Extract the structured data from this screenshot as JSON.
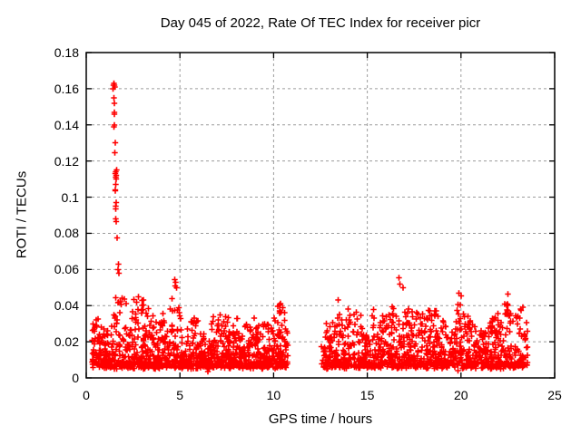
{
  "window": {
    "background": "#ffffff",
    "foreground": "#000000"
  },
  "chart_data": {
    "type": "scatter",
    "title": "Day 045 of 2022, Rate Of TEC Index for receiver picr",
    "xlabel": "GPS time / hours",
    "ylabel": "ROTI / TECUs",
    "xlim": [
      0,
      25
    ],
    "ylim": [
      0,
      0.18
    ],
    "xticks": [
      0,
      5,
      10,
      15,
      20,
      25
    ],
    "xtick_labels": [
      "0",
      "5",
      "10",
      "15",
      "20",
      "25"
    ],
    "yticks": [
      0,
      0.02,
      0.04,
      0.06,
      0.08,
      0.1,
      0.12,
      0.14,
      0.16,
      0.18
    ],
    "ytick_labels": [
      "0",
      "0.02",
      "0.04",
      "0.06",
      "0.08",
      "0.1",
      "0.12",
      "0.14",
      "0.16",
      "0.18"
    ],
    "grid": {
      "show": true,
      "color": "#9c9c9c",
      "dash": [
        3,
        3
      ]
    },
    "frame_color": "#000000",
    "tick_length": 6,
    "marker": {
      "symbol": "plus",
      "color": "#ff0000",
      "size": 7,
      "stroke_width": 1.6
    },
    "legend": null,
    "seed": 20220045,
    "outliers": [
      [
        1.42,
        0.16
      ],
      [
        1.45,
        0.162
      ],
      [
        1.48,
        0.163
      ],
      [
        1.5,
        0.162
      ],
      [
        1.52,
        0.161
      ],
      [
        1.47,
        0.155
      ],
      [
        1.5,
        0.152
      ],
      [
        1.49,
        0.146
      ],
      [
        1.51,
        0.147
      ],
      [
        1.5,
        0.14
      ],
      [
        1.48,
        0.139
      ],
      [
        1.55,
        0.13
      ],
      [
        1.52,
        0.1245
      ],
      [
        1.62,
        0.115
      ],
      [
        1.58,
        0.114
      ],
      [
        1.55,
        0.113
      ],
      [
        1.6,
        0.112
      ],
      [
        1.57,
        0.111
      ],
      [
        1.59,
        0.11
      ],
      [
        1.57,
        0.107
      ],
      [
        1.55,
        0.104
      ],
      [
        1.56,
        0.1035
      ],
      [
        1.6,
        0.097
      ],
      [
        1.58,
        0.095
      ],
      [
        1.57,
        0.0935
      ],
      [
        1.58,
        0.088
      ],
      [
        1.6,
        0.0865
      ],
      [
        1.65,
        0.0775
      ],
      [
        1.72,
        0.063
      ],
      [
        1.7,
        0.06
      ],
      [
        1.75,
        0.058
      ],
      [
        4.72,
        0.0545
      ],
      [
        4.78,
        0.053
      ],
      [
        4.75,
        0.051
      ],
      [
        4.82,
        0.05
      ],
      [
        13.45,
        0.043
      ],
      [
        16.7,
        0.0555
      ],
      [
        16.75,
        0.052
      ],
      [
        16.9,
        0.05
      ],
      [
        19.9,
        0.047
      ],
      [
        20.0,
        0.0455
      ],
      [
        22.5,
        0.0465
      ]
    ],
    "low_outliers": [
      [
        6.5,
        0.0035
      ],
      [
        6.45,
        0.006
      ],
      [
        6.55,
        0.005
      ],
      [
        19.85,
        0.004
      ],
      [
        19.82,
        0.008
      ],
      [
        15.4,
        0.006
      ]
    ],
    "bands": [
      {
        "x_start": 0.3,
        "x_end": 10.75,
        "points": 1150,
        "y_base": 0.0065,
        "tail_exponent": 2.3,
        "y_noise": 0.003,
        "envelope": [
          [
            0.3,
            0.03
          ],
          [
            0.55,
            0.034
          ],
          [
            0.8,
            0.03
          ],
          [
            1.05,
            0.024
          ],
          [
            1.3,
            0.03
          ],
          [
            1.55,
            0.05
          ],
          [
            1.75,
            0.058
          ],
          [
            1.95,
            0.052
          ],
          [
            2.15,
            0.04
          ],
          [
            2.35,
            0.034
          ],
          [
            2.55,
            0.044
          ],
          [
            2.75,
            0.05
          ],
          [
            2.95,
            0.046
          ],
          [
            3.15,
            0.048
          ],
          [
            3.35,
            0.038
          ],
          [
            3.55,
            0.034
          ],
          [
            3.75,
            0.03
          ],
          [
            3.95,
            0.034
          ],
          [
            4.15,
            0.038
          ],
          [
            4.4,
            0.034
          ],
          [
            4.6,
            0.044
          ],
          [
            4.75,
            0.05
          ],
          [
            4.9,
            0.044
          ],
          [
            5.1,
            0.036
          ],
          [
            5.3,
            0.032
          ],
          [
            5.5,
            0.03
          ],
          [
            5.7,
            0.034
          ],
          [
            5.9,
            0.037
          ],
          [
            6.1,
            0.034
          ],
          [
            6.3,
            0.03
          ],
          [
            6.5,
            0.028
          ],
          [
            6.7,
            0.032
          ],
          [
            6.9,
            0.035
          ],
          [
            7.1,
            0.037
          ],
          [
            7.3,
            0.032
          ],
          [
            7.5,
            0.036
          ],
          [
            7.7,
            0.034
          ],
          [
            7.9,
            0.031
          ],
          [
            8.1,
            0.033
          ],
          [
            8.3,
            0.028
          ],
          [
            8.5,
            0.03
          ],
          [
            8.7,
            0.034
          ],
          [
            8.9,
            0.036
          ],
          [
            9.1,
            0.031
          ],
          [
            9.3,
            0.028
          ],
          [
            9.5,
            0.029
          ],
          [
            9.7,
            0.031
          ],
          [
            9.9,
            0.033
          ],
          [
            10.1,
            0.035
          ],
          [
            10.3,
            0.041
          ],
          [
            10.5,
            0.038
          ],
          [
            10.75,
            0.031
          ]
        ]
      },
      {
        "x_start": 12.55,
        "x_end": 23.55,
        "points": 1100,
        "y_base": 0.0065,
        "tail_exponent": 2.3,
        "y_noise": 0.003,
        "envelope": [
          [
            12.55,
            0.028
          ],
          [
            12.8,
            0.032
          ],
          [
            13.05,
            0.03
          ],
          [
            13.3,
            0.034
          ],
          [
            13.55,
            0.037
          ],
          [
            13.8,
            0.04
          ],
          [
            14.05,
            0.036
          ],
          [
            14.3,
            0.039
          ],
          [
            14.55,
            0.042
          ],
          [
            14.8,
            0.038
          ],
          [
            15.05,
            0.033
          ],
          [
            15.3,
            0.04
          ],
          [
            15.55,
            0.036
          ],
          [
            15.8,
            0.034
          ],
          [
            16.05,
            0.036
          ],
          [
            16.3,
            0.04
          ],
          [
            16.55,
            0.046
          ],
          [
            16.8,
            0.052
          ],
          [
            17.05,
            0.05
          ],
          [
            17.3,
            0.044
          ],
          [
            17.55,
            0.04
          ],
          [
            17.8,
            0.038
          ],
          [
            18.05,
            0.036
          ],
          [
            18.3,
            0.042
          ],
          [
            18.55,
            0.039
          ],
          [
            18.8,
            0.036
          ],
          [
            19.05,
            0.033
          ],
          [
            19.3,
            0.03
          ],
          [
            19.55,
            0.029
          ],
          [
            19.8,
            0.04
          ],
          [
            20.05,
            0.044
          ],
          [
            20.3,
            0.038
          ],
          [
            20.55,
            0.031
          ],
          [
            20.8,
            0.029
          ],
          [
            21.05,
            0.031
          ],
          [
            21.3,
            0.034
          ],
          [
            21.55,
            0.03
          ],
          [
            21.8,
            0.034
          ],
          [
            22.05,
            0.038
          ],
          [
            22.3,
            0.042
          ],
          [
            22.55,
            0.044
          ],
          [
            22.8,
            0.036
          ],
          [
            23.05,
            0.038
          ],
          [
            23.3,
            0.04
          ],
          [
            23.55,
            0.03
          ]
        ]
      }
    ]
  }
}
